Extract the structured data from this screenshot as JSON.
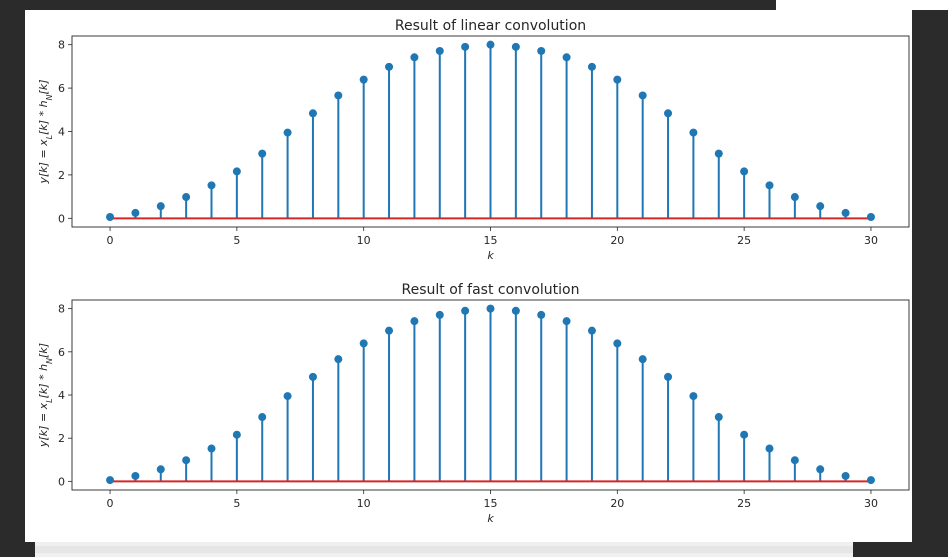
{
  "chart_data": [
    {
      "type": "stem",
      "title": "Result of linear convolution",
      "xlabel": "k",
      "ylabel": "y[k] = x_L[k] * h_N[k]",
      "xlim": [
        -1.5,
        31.5
      ],
      "ylim": [
        -0.4,
        8.4
      ],
      "xticks": [
        0,
        5,
        10,
        15,
        20,
        25,
        30
      ],
      "yticks": [
        0,
        2,
        4,
        6,
        8
      ],
      "grid": false,
      "colors": {
        "stem": "#1f77b4",
        "baseline": "#d62728"
      },
      "x": [
        0,
        1,
        2,
        3,
        4,
        5,
        6,
        7,
        8,
        9,
        10,
        11,
        12,
        13,
        14,
        15,
        16,
        17,
        18,
        19,
        20,
        21,
        22,
        23,
        24,
        25,
        26,
        27,
        28,
        29,
        30
      ],
      "y": [
        0.06,
        0.25,
        0.56,
        0.98,
        1.52,
        2.16,
        2.98,
        3.95,
        4.84,
        5.66,
        6.39,
        6.98,
        7.42,
        7.71,
        7.9,
        8.0,
        7.9,
        7.71,
        7.42,
        6.98,
        6.39,
        5.66,
        4.84,
        3.95,
        2.98,
        2.16,
        1.52,
        0.98,
        0.56,
        0.25,
        0.06
      ]
    },
    {
      "type": "stem",
      "title": "Result of fast convolution",
      "xlabel": "k",
      "ylabel": "y[k] = x_L[k] * h_N[k]",
      "xlim": [
        -1.5,
        31.5
      ],
      "ylim": [
        -0.4,
        8.4
      ],
      "xticks": [
        0,
        5,
        10,
        15,
        20,
        25,
        30
      ],
      "yticks": [
        0,
        2,
        4,
        6,
        8
      ],
      "grid": false,
      "colors": {
        "stem": "#1f77b4",
        "baseline": "#d62728"
      },
      "x": [
        0,
        1,
        2,
        3,
        4,
        5,
        6,
        7,
        8,
        9,
        10,
        11,
        12,
        13,
        14,
        15,
        16,
        17,
        18,
        19,
        20,
        21,
        22,
        23,
        24,
        25,
        26,
        27,
        28,
        29,
        30
      ],
      "y": [
        0.06,
        0.25,
        0.56,
        0.98,
        1.52,
        2.16,
        2.98,
        3.95,
        4.84,
        5.66,
        6.39,
        6.98,
        7.42,
        7.71,
        7.9,
        8.0,
        7.9,
        7.71,
        7.42,
        6.98,
        6.39,
        5.66,
        4.84,
        3.95,
        2.98,
        2.16,
        1.52,
        0.98,
        0.56,
        0.25,
        0.06
      ]
    }
  ]
}
